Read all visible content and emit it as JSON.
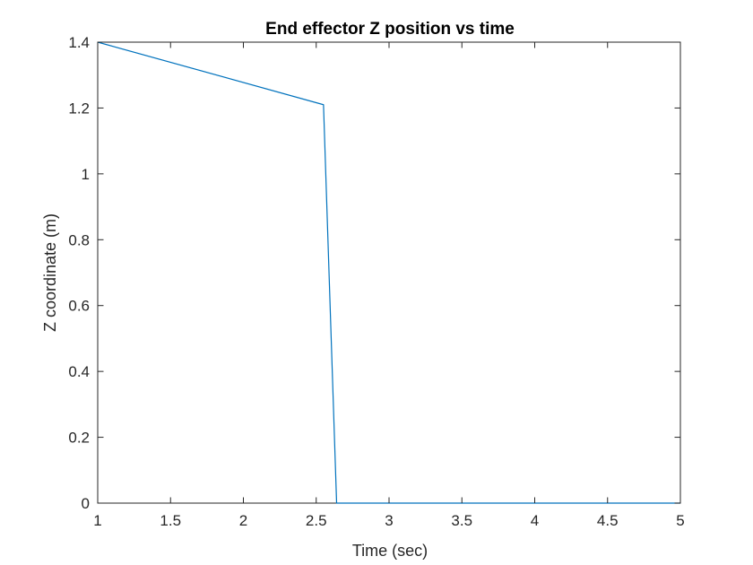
{
  "chart_data": {
    "type": "line",
    "title": "End effector Z position vs time",
    "xlabel": "Time (sec)",
    "ylabel": "Z coordinate (m)",
    "xlim": [
      1,
      5
    ],
    "ylim": [
      0,
      1.4
    ],
    "xticks": [
      1,
      1.5,
      2,
      2.5,
      3,
      3.5,
      4,
      4.5,
      5
    ],
    "xtick_labels": [
      "1",
      "1.5",
      "2",
      "2.5",
      "3",
      "3.5",
      "4",
      "4.5",
      "5"
    ],
    "yticks": [
      0,
      0.2,
      0.4,
      0.6,
      0.8,
      1,
      1.2,
      1.4
    ],
    "ytick_labels": [
      "0",
      "0.2",
      "0.4",
      "0.6",
      "0.8",
      "1",
      "1.2",
      "1.4"
    ],
    "grid": false,
    "legend": "none",
    "series": [
      {
        "color": "#0072BD",
        "x": [
          1,
          2.55,
          2.64,
          5
        ],
        "y": [
          1.4,
          1.21,
          0,
          0
        ]
      }
    ]
  }
}
